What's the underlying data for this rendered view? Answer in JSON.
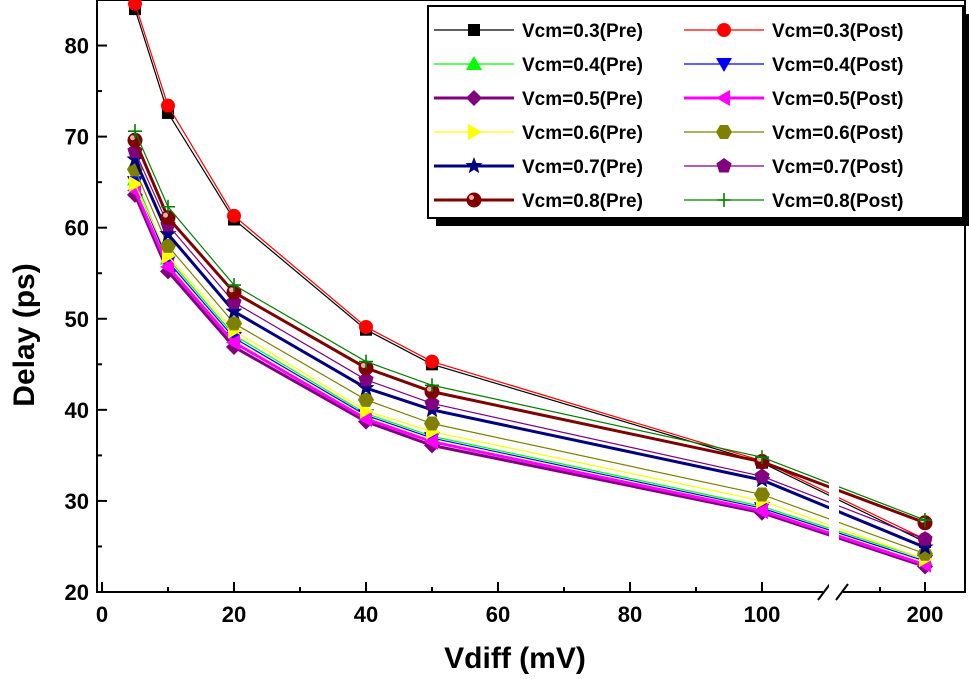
{
  "chart_data": {
    "type": "line",
    "title": "",
    "xlabel": "Vdiff (mV)",
    "ylabel": "Delay (ps)",
    "ylim": [
      20,
      85
    ],
    "x_ticks": [
      "0",
      "20",
      "40",
      "60",
      "80",
      "100",
      "200"
    ],
    "y_ticks": [
      "20",
      "30",
      "40",
      "50",
      "60",
      "70",
      "80"
    ],
    "x_break": "between 100 and 200",
    "legend_position": "top-right",
    "grid": false,
    "x": [
      5,
      10,
      20,
      40,
      50,
      100,
      200
    ],
    "series": [
      {
        "name": "Vcm=0.3(Pre)",
        "color": "#000000",
        "marker": "square",
        "values": [
          84.0,
          72.6,
          60.9,
          48.8,
          45.0,
          34.2,
          25.5
        ]
      },
      {
        "name": "Vcm=0.3(Post)",
        "color": "#ff0000",
        "marker": "circle",
        "values": [
          84.6,
          73.4,
          61.3,
          49.1,
          45.3,
          34.4,
          25.8
        ]
      },
      {
        "name": "Vcm=0.4(Pre)",
        "color": "#00ff00",
        "marker": "triangle-up",
        "values": [
          65.3,
          56.6,
          48.2,
          39.6,
          37.1,
          29.4,
          23.6
        ]
      },
      {
        "name": "Vcm=0.4(Post)",
        "color": "#0000ff",
        "marker": "triangle-down",
        "values": [
          65.0,
          56.3,
          47.9,
          39.4,
          36.9,
          29.2,
          23.4
        ]
      },
      {
        "name": "Vcm=0.5(Pre)",
        "color": "#800080",
        "marker": "diamond",
        "values": [
          63.6,
          55.2,
          46.9,
          38.7,
          36.1,
          28.7,
          22.8
        ]
      },
      {
        "name": "Vcm=0.5(Post)",
        "color": "#ff00ff",
        "marker": "triangle-left",
        "values": [
          64.1,
          55.7,
          47.4,
          39.0,
          36.5,
          28.9,
          23.0
        ]
      },
      {
        "name": "Vcm=0.6(Pre)",
        "color": "#ffff00",
        "marker": "triangle-right",
        "values": [
          64.8,
          56.9,
          48.7,
          39.9,
          37.6,
          30.0,
          23.6
        ]
      },
      {
        "name": "Vcm=0.6(Post)",
        "color": "#808000",
        "marker": "hexagon",
        "values": [
          66.4,
          58.0,
          49.5,
          41.1,
          38.5,
          30.7,
          24.2
        ]
      },
      {
        "name": "Vcm=0.7(Pre)",
        "color": "#000080",
        "marker": "star",
        "values": [
          67.5,
          59.3,
          50.8,
          42.4,
          40.0,
          32.3,
          24.9
        ]
      },
      {
        "name": "Vcm=0.7(Post)",
        "color": "#800080",
        "marker": "pentagon",
        "values": [
          68.4,
          60.3,
          51.8,
          43.3,
          40.7,
          32.7,
          25.8
        ]
      },
      {
        "name": "Vcm=0.8(Pre)",
        "color": "#800000",
        "marker": "ball",
        "values": [
          69.6,
          61.1,
          52.9,
          44.6,
          42.0,
          34.3,
          27.6
        ]
      },
      {
        "name": "Vcm=0.8(Post)",
        "color": "#008000",
        "marker": "plus",
        "values": [
          70.6,
          62.3,
          53.7,
          45.3,
          42.7,
          34.8,
          27.9
        ]
      }
    ]
  }
}
